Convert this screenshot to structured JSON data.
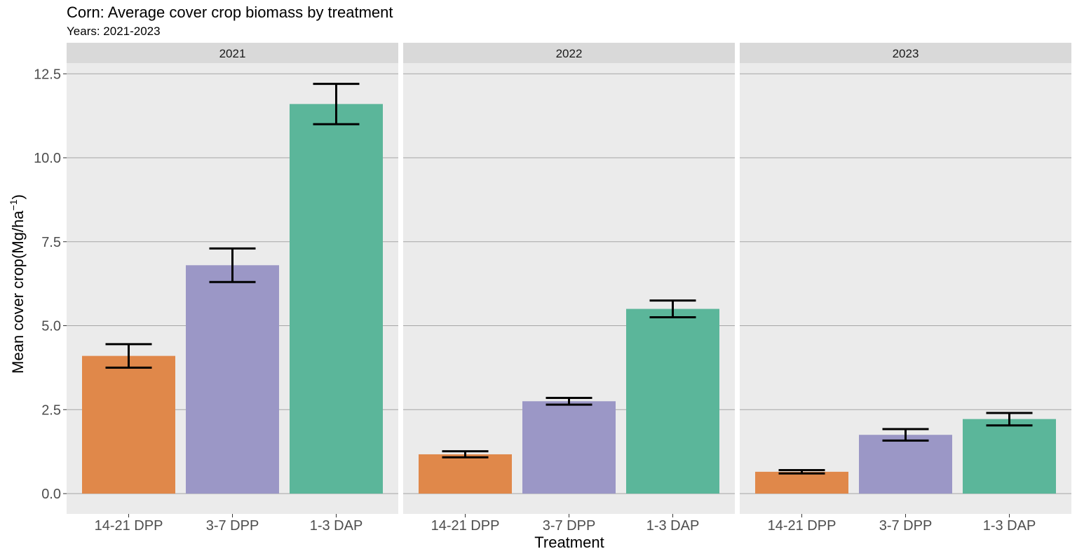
{
  "chart_data": {
    "type": "bar",
    "title": "Corn: Average cover crop biomass by treatment",
    "subtitle": "Years: 2021-2023",
    "xlabel": "Treatment",
    "ylabel": {
      "text": "Mean cover crop(Mg/ha",
      "superscript": "−1",
      "close": ")"
    },
    "ylim": [
      -0.6,
      13.3
    ],
    "yticks": [
      "0.0",
      "2.5",
      "5.0",
      "7.5",
      "10.0",
      "12.5"
    ],
    "categories": [
      "14-21 DPP",
      "3-7 DPP",
      "1-3 DAP"
    ],
    "colors": {
      "14-21 DPP": "#e0884a",
      "3-7 DPP": "#9b97c6",
      "1-3 DAP": "#5bb69a"
    },
    "grid": true,
    "panel_background": "#ebebeb",
    "strip_background": "#d9d9d9",
    "facets": [
      {
        "label": "2021",
        "values": [
          4.1,
          6.8,
          11.6
        ],
        "error_low": [
          3.75,
          6.3,
          11.0
        ],
        "error_high": [
          4.45,
          7.3,
          12.2
        ]
      },
      {
        "label": "2022",
        "values": [
          1.17,
          2.75,
          5.5
        ],
        "error_low": [
          1.08,
          2.65,
          5.25
        ],
        "error_high": [
          1.26,
          2.85,
          5.75
        ]
      },
      {
        "label": "2023",
        "values": [
          0.65,
          1.75,
          2.22
        ],
        "error_low": [
          0.6,
          1.58,
          2.03
        ],
        "error_high": [
          0.7,
          1.92,
          2.4
        ]
      }
    ]
  }
}
